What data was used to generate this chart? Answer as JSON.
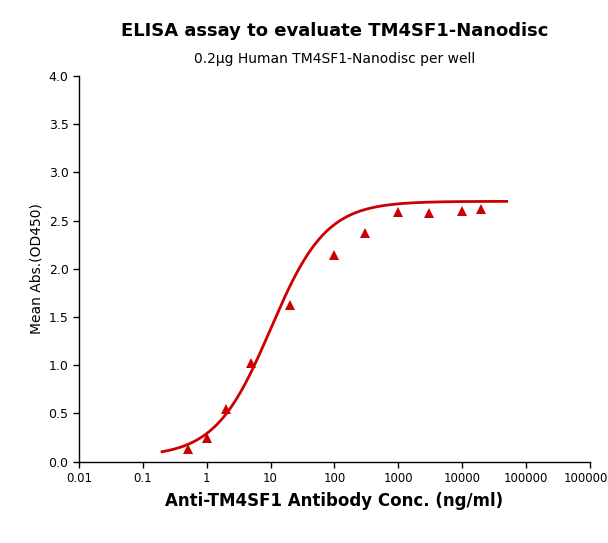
{
  "title": "ELISA assay to evaluate TM4SF1-Nanodisc",
  "subtitle": "0.2μg Human TM4SF1-Nanodisc per well",
  "xlabel": "Anti-TM4SF1 Antibody Conc. (ng/ml)",
  "ylabel": "Mean Abs.(OD450)",
  "title_fontsize": 13,
  "subtitle_fontsize": 10,
  "xlabel_fontsize": 12,
  "ylabel_fontsize": 10,
  "line_color": "#CC0000",
  "marker_color": "#CC0000",
  "marker": "^",
  "marker_size": 7,
  "x_data": [
    0.5,
    1.0,
    2.0,
    5.0,
    20.0,
    100.0,
    300.0,
    1000.0,
    3000.0,
    10000.0,
    20000.0
  ],
  "y_data": [
    0.13,
    0.24,
    0.55,
    1.02,
    1.62,
    2.14,
    2.37,
    2.59,
    2.58,
    2.6,
    2.62
  ],
  "ylim": [
    0.0,
    4.0
  ],
  "yticks": [
    0.0,
    0.5,
    1.0,
    1.5,
    2.0,
    2.5,
    3.0,
    3.5,
    4.0
  ],
  "xlim_left": 0.01,
  "xlim_right": 1000000,
  "background_color": "#ffffff",
  "figsize": [
    6.08,
    5.43
  ],
  "dpi": 100
}
